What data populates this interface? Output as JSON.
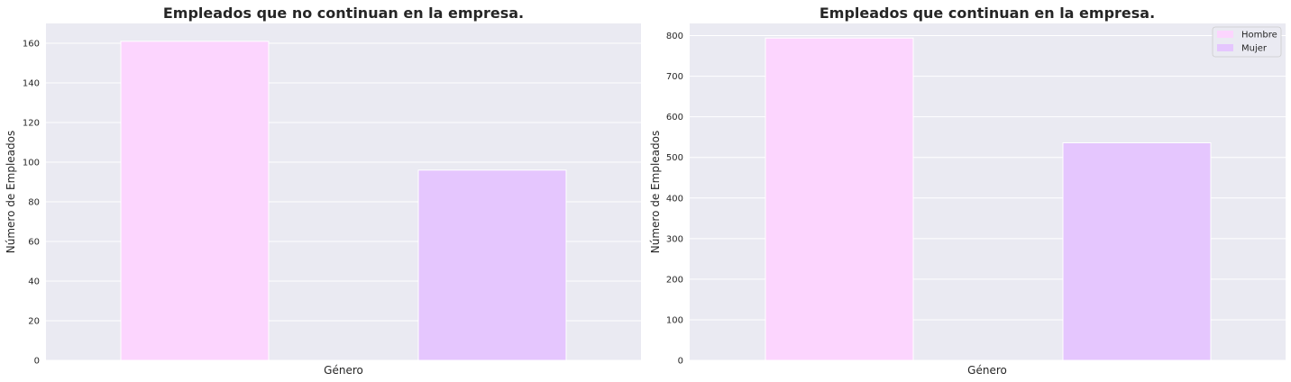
{
  "chart_data": [
    {
      "type": "bar",
      "title": "Empleados que no continuan en la empresa.",
      "xlabel": "Género",
      "ylabel": "Número de Empleados",
      "series": [
        {
          "name": "Hombre",
          "values": [
            161
          ],
          "color": "#fcd5fe"
        },
        {
          "name": "Mujer",
          "values": [
            96
          ],
          "color": "#e5c6fe"
        }
      ],
      "ylim": [
        0,
        170
      ],
      "yticks": [
        0,
        20,
        40,
        60,
        80,
        100,
        120,
        140,
        160
      ],
      "grid": true,
      "legend": "none"
    },
    {
      "type": "bar",
      "title": "Empleados que continuan en la empresa.",
      "xlabel": "Género",
      "ylabel": "Número de Empleados",
      "series": [
        {
          "name": "Hombre",
          "values": [
            794
          ],
          "color": "#fcd5fe"
        },
        {
          "name": "Mujer",
          "values": [
            536
          ],
          "color": "#e5c6fe"
        }
      ],
      "ylim": [
        0,
        830
      ],
      "yticks": [
        0,
        100,
        200,
        300,
        400,
        500,
        600,
        700,
        800
      ],
      "grid": true,
      "legend": "top-right"
    }
  ],
  "colors": {
    "plot_background": "#eaeaf2",
    "grid": "#ffffff",
    "text": "#262626"
  }
}
